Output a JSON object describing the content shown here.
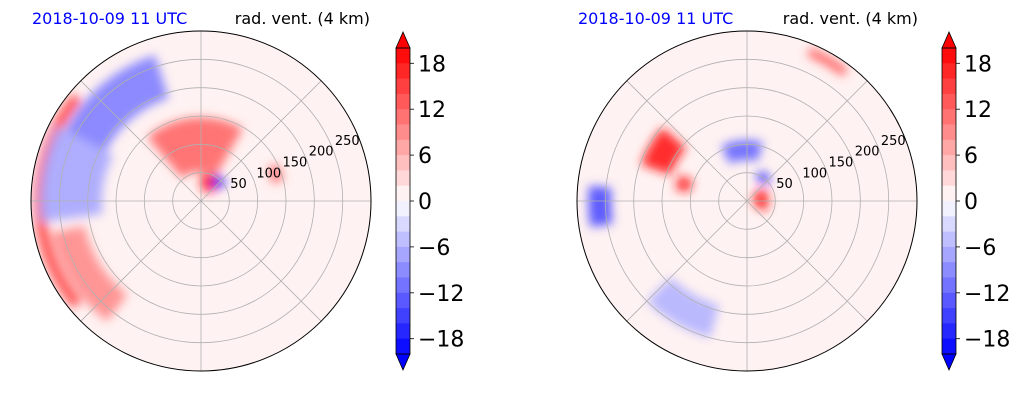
{
  "chart_data": [
    {
      "type": "polar-contourf",
      "title_left": "2018-10-09 11 UTC",
      "title_right": "rad. vent. (4 km)",
      "title_left_color": "#0000ff",
      "r_ticks": [
        50,
        100,
        150,
        200,
        250
      ],
      "r_max": 300,
      "grid": true,
      "colormap": "bwr",
      "colorbar": {
        "range": [
          -20,
          20
        ],
        "levels": 20,
        "ticks": [
          -18,
          -12,
          -6,
          0,
          6,
          12,
          18
        ],
        "tick_labels": [
          "−18",
          "−12",
          "−6",
          "0",
          "6",
          "12",
          "18"
        ],
        "extend": "both",
        "location": "right"
      },
      "features": [
        {
          "kind": "positive",
          "theta": 95,
          "r": 100,
          "dr": 95,
          "dtheta": 70,
          "value": 12
        },
        {
          "kind": "positive",
          "theta": 65,
          "r": 35,
          "dr": 30,
          "dtheta": 50,
          "value": 18
        },
        {
          "kind": "positive",
          "theta": 20,
          "r": 140,
          "dr": 20,
          "dtheta": 12,
          "value": 12
        },
        {
          "kind": "positive",
          "theta": 212,
          "r": 240,
          "dr": 60,
          "dtheta": 40,
          "value": 9
        },
        {
          "kind": "positive",
          "theta": 180,
          "r": 285,
          "dr": 20,
          "dtheta": 80,
          "value": 15
        },
        {
          "kind": "negative",
          "theta": 130,
          "r": 230,
          "dr": 80,
          "dtheta": 45,
          "value": -10
        },
        {
          "kind": "negative",
          "theta": 170,
          "r": 230,
          "dr": 110,
          "dtheta": 35,
          "value": -7
        },
        {
          "kind": "negative",
          "theta": 48,
          "r": 45,
          "dr": 20,
          "dtheta": 25,
          "value": -18
        }
      ]
    },
    {
      "type": "polar-contourf",
      "title_left": "2018-10-09 11 UTC",
      "title_right": "rad. vent. (4 km)",
      "title_left_color": "#0000ff",
      "r_ticks": [
        50,
        100,
        150,
        200,
        250
      ],
      "r_max": 300,
      "grid": true,
      "colormap": "bwr",
      "colorbar": {
        "range": [
          -20,
          20
        ],
        "levels": 20,
        "ticks": [
          -18,
          -12,
          -6,
          0,
          6,
          12,
          18
        ],
        "tick_labels": [
          "−18",
          "−12",
          "−6",
          "0",
          "6",
          "12",
          "18"
        ],
        "extend": "both",
        "location": "right"
      },
      "features": [
        {
          "kind": "positive",
          "theta": 150,
          "r": 170,
          "dr": 55,
          "dtheta": 22,
          "value": 18
        },
        {
          "kind": "positive",
          "theta": 165,
          "r": 115,
          "dr": 25,
          "dtheta": 12,
          "value": 18
        },
        {
          "kind": "positive",
          "theta": 5,
          "r": 25,
          "dr": 25,
          "dtheta": 70,
          "value": 18
        },
        {
          "kind": "positive",
          "theta": 60,
          "r": 285,
          "dr": 15,
          "dtheta": 15,
          "value": 14
        },
        {
          "kind": "negative",
          "theta": 95,
          "r": 90,
          "dr": 35,
          "dtheta": 40,
          "value": -12
        },
        {
          "kind": "negative",
          "theta": 182,
          "r": 260,
          "dr": 40,
          "dtheta": 15,
          "value": -14
        },
        {
          "kind": "negative",
          "theta": 55,
          "r": 50,
          "dr": 15,
          "dtheta": 25,
          "value": -18
        },
        {
          "kind": "negative",
          "theta": 240,
          "r": 220,
          "dr": 60,
          "dtheta": 30,
          "value": -6
        }
      ]
    }
  ]
}
